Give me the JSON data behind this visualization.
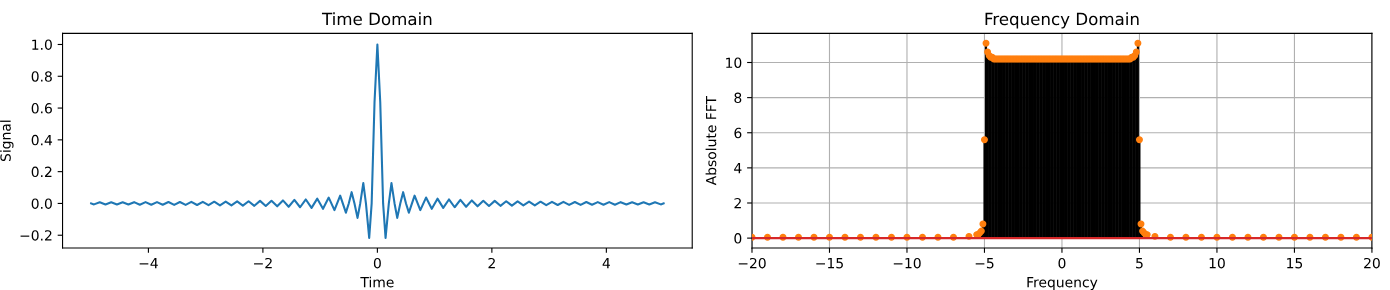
{
  "chart_data": [
    {
      "type": "line",
      "title": "Time Domain",
      "xlabel": "Time",
      "ylabel": "Signal",
      "xlim": [
        -5.5,
        5.5
      ],
      "ylim": [
        -0.28,
        1.07
      ],
      "xticks": [
        {
          "value": -4,
          "label": "−4"
        },
        {
          "value": -2,
          "label": "−2"
        },
        0,
        2,
        4
      ],
      "yticks": [
        {
          "value": -0.2,
          "label": "−0.2"
        },
        {
          "value": 0.0,
          "label": "0.0"
        },
        0.2,
        0.4,
        0.6,
        0.8,
        {
          "value": 1.0,
          "label": "1.0"
        }
      ],
      "grid": false,
      "marker": "none",
      "line_style": "solid",
      "series": [
        {
          "color": "#1f77b4",
          "x": [
            -5.0,
            -4.95,
            -4.85,
            -4.75,
            -4.65,
            -4.55,
            -4.45,
            -4.35,
            -4.25,
            -4.15,
            -4.05,
            -3.95,
            -3.85,
            -3.75,
            -3.65,
            -3.55,
            -3.45,
            -3.35,
            -3.25,
            -3.15,
            -3.05,
            -2.95,
            -2.85,
            -2.75,
            -2.65,
            -2.55,
            -2.45,
            -2.35,
            -2.25,
            -2.15,
            -2.05,
            -1.95,
            -1.85,
            -1.75,
            -1.65,
            -1.55,
            -1.45,
            -1.35,
            -1.25,
            -1.15,
            -1.05,
            -0.95,
            -0.85,
            -0.75,
            -0.65,
            -0.55,
            -0.5,
            -0.45,
            -0.4,
            -0.347,
            -0.3,
            -0.246,
            -0.2,
            -0.143,
            -0.1,
            -0.05,
            0,
            0.05,
            0.1,
            0.143,
            0.2,
            0.246,
            0.3,
            0.347,
            0.4,
            0.45,
            0.5,
            0.55,
            0.65,
            0.75,
            0.85,
            0.95,
            1.05,
            1.15,
            1.25,
            1.35,
            1.45,
            1.55,
            1.65,
            1.75,
            1.85,
            1.95,
            2.05,
            2.15,
            2.25,
            2.35,
            2.45,
            2.55,
            2.65,
            2.75,
            2.85,
            2.95,
            3.05,
            3.15,
            3.25,
            3.35,
            3.45,
            3.55,
            3.65,
            3.75,
            3.85,
            3.95,
            4.05,
            4.15,
            4.25,
            4.35,
            4.45,
            4.55,
            4.65,
            4.75,
            4.85,
            4.95,
            5.0
          ],
          "values": [
            0,
            -0.006,
            0.007,
            -0.007,
            0.007,
            -0.007,
            0.007,
            -0.007,
            0.008,
            -0.008,
            0.008,
            -0.008,
            0.008,
            -0.008,
            0.009,
            -0.009,
            0.009,
            -0.009,
            0.01,
            -0.01,
            0.01,
            -0.011,
            0.011,
            -0.012,
            0.012,
            -0.012,
            0.013,
            -0.014,
            0.014,
            -0.015,
            0.016,
            -0.016,
            0.017,
            -0.018,
            0.019,
            -0.021,
            0.022,
            -0.024,
            0.025,
            -0.028,
            0.03,
            -0.034,
            0.037,
            -0.042,
            0.049,
            -0.058,
            0,
            0.071,
            0,
            -0.091,
            0,
            0.128,
            0,
            -0.217,
            0,
            0.637,
            1,
            0.637,
            0,
            -0.217,
            0,
            0.128,
            0,
            -0.091,
            0,
            0.071,
            0,
            -0.058,
            0.049,
            -0.042,
            0.037,
            -0.034,
            0.03,
            -0.028,
            0.025,
            -0.024,
            0.022,
            -0.021,
            0.019,
            -0.018,
            0.017,
            -0.016,
            0.016,
            -0.015,
            0.014,
            -0.014,
            0.013,
            -0.012,
            0.012,
            -0.012,
            0.011,
            -0.011,
            0.01,
            -0.01,
            0.01,
            -0.009,
            0.009,
            -0.009,
            0.009,
            -0.008,
            0.008,
            -0.008,
            0.008,
            -0.008,
            0.008,
            -0.007,
            0.007,
            -0.007,
            0.007,
            -0.007,
            0.007,
            -0.006,
            0
          ]
        }
      ]
    },
    {
      "type": "lollipop",
      "title": "Frequency Domain",
      "xlabel": "Frequency",
      "ylabel": "Absolute FFT",
      "xlim": [
        -20,
        20
      ],
      "ylim": [
        -0.56,
        11.66
      ],
      "xticks": [
        {
          "value": -20,
          "label": "−20"
        },
        {
          "value": -15,
          "label": "−15"
        },
        {
          "value": -10,
          "label": "−10"
        },
        {
          "value": -5,
          "label": "−5"
        },
        0,
        5,
        10,
        15,
        20
      ],
      "yticks": [
        0,
        2,
        4,
        6,
        8,
        10
      ],
      "grid": true,
      "marker": "circle",
      "ref_lines": [
        {
          "axis": "y",
          "value": 0,
          "color": "#d62728"
        }
      ],
      "series": [
        {
          "color": "#ff7f0e",
          "x": [
            -20,
            -19,
            -18,
            -17,
            -16,
            -15,
            -14,
            -13,
            -12,
            -11,
            -10,
            -9,
            -8,
            -7,
            -6,
            -5.5,
            -5.4,
            -5.3,
            -5.2,
            -5.1,
            -5.0,
            -4.9,
            -4.8,
            -4.7,
            -4.6,
            -4.5,
            -4.4,
            -4.3,
            -4.2,
            -4.1,
            -4.0,
            -3.9,
            -3.8,
            -3.7,
            -3.6,
            -3.5,
            -3.4,
            -3.3,
            -3.2,
            -3.1,
            -3.0,
            -2.9,
            -2.8,
            -2.7,
            -2.6,
            -2.5,
            -2.4,
            -2.3,
            -2.2,
            -2.1,
            -2.0,
            -1.9,
            -1.8,
            -1.7,
            -1.6,
            -1.5,
            -1.4,
            -1.3,
            -1.2,
            -1.1,
            -1.0,
            -0.9,
            -0.8,
            -0.7,
            -0.6,
            -0.5,
            -0.4,
            -0.3,
            -0.2,
            -0.1,
            0.0,
            0.1,
            0.2,
            0.3,
            0.4,
            0.5,
            0.6,
            0.7,
            0.8,
            0.9,
            1.0,
            1.1,
            1.2,
            1.3,
            1.4,
            1.5,
            1.6,
            1.7,
            1.8,
            1.9,
            2.0,
            2.1,
            2.2,
            2.3,
            2.4,
            2.5,
            2.6,
            2.7,
            2.8,
            2.9,
            3.0,
            3.1,
            3.2,
            3.3,
            3.4,
            3.5,
            3.6,
            3.7,
            3.8,
            3.9,
            4.0,
            4.1,
            4.2,
            4.3,
            4.4,
            4.5,
            4.6,
            4.7,
            4.8,
            4.9,
            5.0,
            5.1,
            5.2,
            5.3,
            5.4,
            5.5,
            6,
            7,
            8,
            9,
            10,
            11,
            12,
            13,
            14,
            15,
            16,
            17,
            18,
            19,
            20
          ],
          "values": [
            0.05,
            0.05,
            0.05,
            0.05,
            0.05,
            0.05,
            0.05,
            0.05,
            0.05,
            0.05,
            0.05,
            0.05,
            0.05,
            0.05,
            0.1,
            0.2,
            0.2,
            0.3,
            0.4,
            0.8,
            5.6,
            11.1,
            10.6,
            10.4,
            10.3,
            10.3,
            10.2,
            10.2,
            10.2,
            10.2,
            10.2,
            10.2,
            10.2,
            10.2,
            10.2,
            10.2,
            10.2,
            10.2,
            10.2,
            10.2,
            10.2,
            10.2,
            10.2,
            10.2,
            10.2,
            10.2,
            10.2,
            10.2,
            10.2,
            10.2,
            10.2,
            10.2,
            10.2,
            10.2,
            10.2,
            10.2,
            10.2,
            10.2,
            10.2,
            10.2,
            10.2,
            10.2,
            10.2,
            10.2,
            10.2,
            10.2,
            10.2,
            10.2,
            10.2,
            10.2,
            10.2,
            10.2,
            10.2,
            10.2,
            10.2,
            10.2,
            10.2,
            10.2,
            10.2,
            10.2,
            10.2,
            10.2,
            10.2,
            10.2,
            10.2,
            10.2,
            10.2,
            10.2,
            10.2,
            10.2,
            10.2,
            10.2,
            10.2,
            10.2,
            10.2,
            10.2,
            10.2,
            10.2,
            10.2,
            10.2,
            10.2,
            10.2,
            10.2,
            10.2,
            10.2,
            10.2,
            10.2,
            10.2,
            10.2,
            10.2,
            10.2,
            10.2,
            10.2,
            10.2,
            10.2,
            10.3,
            10.3,
            10.4,
            10.6,
            11.1,
            5.6,
            0.8,
            0.4,
            0.3,
            0.2,
            0.2,
            0.1,
            0.05,
            0.05,
            0.05,
            0.05,
            0.05,
            0.05,
            0.05,
            0.05,
            0.05,
            0.05,
            0.05,
            0.05,
            0.05,
            0.05
          ]
        }
      ]
    }
  ]
}
